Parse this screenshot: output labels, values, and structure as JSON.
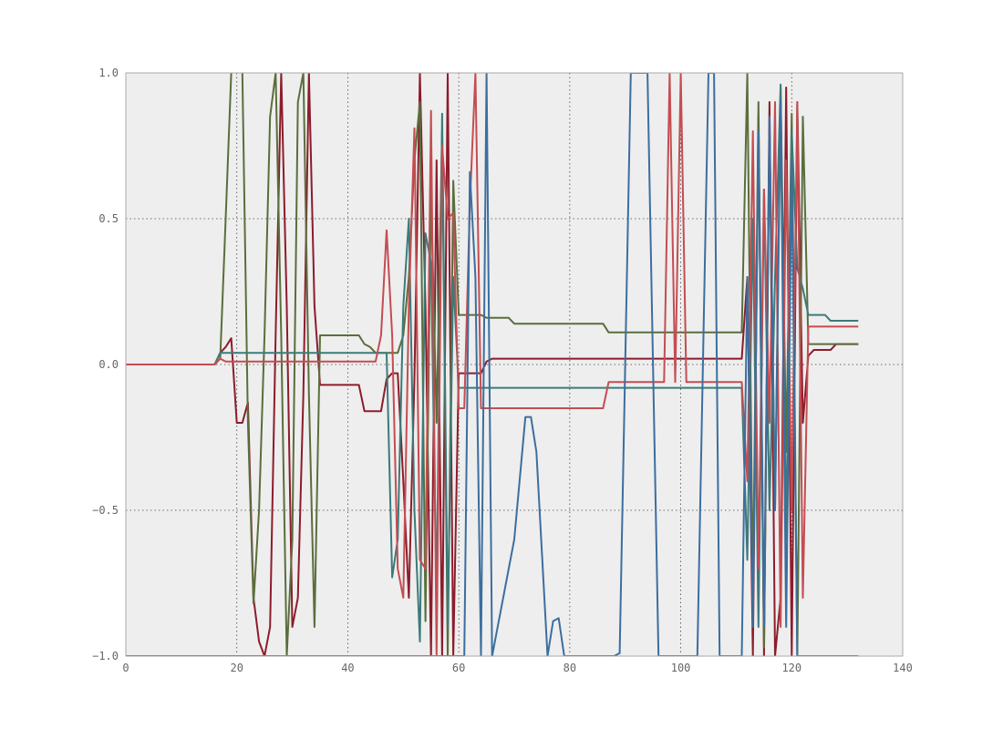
{
  "chart_data": {
    "type": "line",
    "title": "",
    "xlabel": "",
    "ylabel": "",
    "xlim": [
      0,
      140
    ],
    "ylim": [
      -1.0,
      1.0
    ],
    "x_ticks": [
      0,
      20,
      40,
      60,
      80,
      100,
      120,
      140
    ],
    "y_ticks": [
      -1.0,
      -0.5,
      0.0,
      0.5,
      1.0
    ],
    "x_tick_labels": [
      "0",
      "20",
      "40",
      "60",
      "80",
      "100",
      "120",
      "140"
    ],
    "y_tick_labels": [
      "−1.0",
      "−0.5",
      "0.0",
      "0.5",
      "1.0"
    ],
    "grid": true,
    "legend": "none",
    "plot_background": "#eeeeee",
    "series": [
      {
        "color": "#8c1c2c",
        "points": [
          [
            0,
            0
          ],
          [
            16,
            0
          ],
          [
            17,
            0.04
          ],
          [
            18,
            0.06
          ],
          [
            19,
            0.09
          ],
          [
            20,
            -0.2
          ],
          [
            21,
            -0.2
          ],
          [
            22,
            -0.13
          ],
          [
            23,
            -0.8
          ],
          [
            24,
            -0.95
          ],
          [
            25,
            -1.0
          ],
          [
            26,
            -0.9
          ],
          [
            27,
            0.1
          ],
          [
            28,
            1.0
          ],
          [
            29,
            0.2
          ],
          [
            30,
            -0.9
          ],
          [
            31,
            -0.8
          ],
          [
            32,
            -0.1
          ],
          [
            33,
            1.0
          ],
          [
            34,
            0.2
          ],
          [
            35,
            -0.07
          ],
          [
            42,
            -0.07
          ],
          [
            43,
            -0.16
          ],
          [
            46,
            -0.16
          ],
          [
            47,
            -0.05
          ],
          [
            48,
            -0.03
          ],
          [
            49,
            -0.03
          ],
          [
            50,
            -0.4
          ],
          [
            51,
            -0.8
          ],
          [
            52,
            -0.05
          ],
          [
            53,
            1.0
          ],
          [
            54,
            0.2
          ],
          [
            55,
            -1.0
          ],
          [
            56,
            0.7
          ],
          [
            57,
            -1.0
          ],
          [
            58,
            1.0
          ],
          [
            59,
            -1.0
          ],
          [
            60,
            -0.03
          ],
          [
            64,
            -0.03
          ],
          [
            65,
            0.01
          ],
          [
            66,
            0.02
          ],
          [
            110,
            0.02
          ],
          [
            111,
            0.02
          ],
          [
            112,
            0.3
          ],
          [
            113,
            -1.0
          ],
          [
            114,
            0.85
          ],
          [
            115,
            -1.0
          ],
          [
            116,
            0.9
          ],
          [
            117,
            -1.0
          ],
          [
            118,
            -0.8
          ],
          [
            119,
            0.95
          ],
          [
            120,
            -1.0
          ],
          [
            121,
            0.9
          ],
          [
            122,
            -0.2
          ],
          [
            123,
            0.03
          ],
          [
            124,
            0.05
          ],
          [
            127,
            0.05
          ],
          [
            128,
            0.07
          ],
          [
            132,
            0.07
          ]
        ]
      },
      {
        "color": "#5a6e3c",
        "points": [
          [
            0,
            0
          ],
          [
            16,
            0
          ],
          [
            17,
            0.02
          ],
          [
            18,
            0.5
          ],
          [
            19,
            1.0
          ],
          [
            20,
            1.1
          ],
          [
            21,
            1.0
          ],
          [
            22,
            -0.2
          ],
          [
            23,
            -0.82
          ],
          [
            24,
            -0.5
          ],
          [
            25,
            0.1
          ],
          [
            26,
            0.85
          ],
          [
            27,
            1.0
          ],
          [
            28,
            0.1
          ],
          [
            29,
            -1.0
          ],
          [
            30,
            -0.6
          ],
          [
            31,
            0.9
          ],
          [
            32,
            1.0
          ],
          [
            33,
            -0.1
          ],
          [
            34,
            -0.9
          ],
          [
            35,
            0.1
          ],
          [
            42,
            0.1
          ],
          [
            43,
            0.07
          ],
          [
            44,
            0.06
          ],
          [
            45,
            0.04
          ],
          [
            48,
            0.04
          ],
          [
            49,
            0.04
          ],
          [
            50,
            0.1
          ],
          [
            51,
            0.3
          ],
          [
            52,
            0.7
          ],
          [
            53,
            0.9
          ],
          [
            54,
            -0.88
          ],
          [
            55,
            0.6
          ],
          [
            56,
            -0.2
          ],
          [
            57,
            0.8
          ],
          [
            58,
            -1.0
          ],
          [
            59,
            0.63
          ],
          [
            60,
            0.17
          ],
          [
            64,
            0.17
          ],
          [
            65,
            0.16
          ],
          [
            69,
            0.16
          ],
          [
            70,
            0.14
          ],
          [
            86,
            0.14
          ],
          [
            87,
            0.11
          ],
          [
            111,
            0.11
          ],
          [
            112,
            1.0
          ],
          [
            113,
            -0.8
          ],
          [
            114,
            0.9
          ],
          [
            115,
            -0.97
          ],
          [
            116,
            0.8
          ],
          [
            117,
            -0.5
          ],
          [
            118,
            0.95
          ],
          [
            119,
            -0.3
          ],
          [
            120,
            0.86
          ],
          [
            121,
            -1.0
          ],
          [
            122,
            0.85
          ],
          [
            123,
            0.07
          ],
          [
            132,
            0.07
          ]
        ]
      },
      {
        "color": "#3d7a7a",
        "points": [
          [
            0,
            0
          ],
          [
            16,
            0
          ],
          [
            17,
            0.04
          ],
          [
            46,
            0.04
          ],
          [
            47,
            0.04
          ],
          [
            48,
            -0.73
          ],
          [
            49,
            -0.6
          ],
          [
            50,
            0.2
          ],
          [
            51,
            0.5
          ],
          [
            52,
            -0.5
          ],
          [
            53,
            -0.95
          ],
          [
            54,
            0.45
          ],
          [
            55,
            0.35
          ],
          [
            56,
            -0.8
          ],
          [
            57,
            0.86
          ],
          [
            58,
            -0.9
          ],
          [
            59,
            0.3
          ],
          [
            60,
            -0.08
          ],
          [
            111,
            -0.08
          ],
          [
            112,
            -0.67
          ],
          [
            113,
            0.5
          ],
          [
            114,
            -0.9
          ],
          [
            115,
            0.6
          ],
          [
            116,
            -0.5
          ],
          [
            117,
            0.3
          ],
          [
            118,
            0.96
          ],
          [
            119,
            -0.6
          ],
          [
            120,
            0.8
          ],
          [
            121,
            0.33
          ],
          [
            122,
            0.26
          ],
          [
            123,
            0.17
          ],
          [
            126,
            0.17
          ],
          [
            127,
            0.15
          ],
          [
            132,
            0.15
          ]
        ]
      },
      {
        "color": "#c44d52",
        "points": [
          [
            0,
            0
          ],
          [
            16,
            0
          ],
          [
            17,
            0.02
          ],
          [
            18,
            0.01
          ],
          [
            45,
            0.01
          ],
          [
            46,
            0.1
          ],
          [
            47,
            0.46
          ],
          [
            48,
            0.1
          ],
          [
            49,
            -0.7
          ],
          [
            50,
            -0.8
          ],
          [
            51,
            0.2
          ],
          [
            52,
            0.81
          ],
          [
            53,
            -0.67
          ],
          [
            54,
            -0.7
          ],
          [
            55,
            0.87
          ],
          [
            56,
            -1.0
          ],
          [
            57,
            0.75
          ],
          [
            58,
            0.5
          ],
          [
            59,
            0.52
          ],
          [
            60,
            -0.15
          ],
          [
            61,
            -0.15
          ],
          [
            62,
            0.55
          ],
          [
            63,
            1.0
          ],
          [
            64,
            -0.15
          ],
          [
            86,
            -0.15
          ],
          [
            87,
            -0.06
          ],
          [
            97,
            -0.06
          ],
          [
            98,
            1.0
          ],
          [
            99,
            -0.06
          ],
          [
            100,
            1.0
          ],
          [
            101,
            -0.06
          ],
          [
            111,
            -0.06
          ],
          [
            112,
            -0.4
          ],
          [
            113,
            0.8
          ],
          [
            114,
            -0.7
          ],
          [
            115,
            0.6
          ],
          [
            116,
            -0.2
          ],
          [
            117,
            0.9
          ],
          [
            118,
            -0.9
          ],
          [
            119,
            0.7
          ],
          [
            120,
            -0.5
          ],
          [
            121,
            0.9
          ],
          [
            122,
            -0.8
          ],
          [
            123,
            0.13
          ],
          [
            132,
            0.13
          ]
        ]
      },
      {
        "color": "#3c6e9e",
        "points": [
          [
            0,
            -1.0
          ],
          [
            61,
            -1.0
          ],
          [
            62,
            0.66
          ],
          [
            63,
            0.3
          ],
          [
            64,
            -1.0
          ],
          [
            65,
            1.0
          ],
          [
            66,
            -1.0
          ],
          [
            70,
            -0.6
          ],
          [
            72,
            -0.18
          ],
          [
            73,
            -0.18
          ],
          [
            74,
            -0.3
          ],
          [
            76,
            -1.0
          ],
          [
            77,
            -0.88
          ],
          [
            78,
            -0.87
          ],
          [
            79,
            -1.0
          ],
          [
            88,
            -1.0
          ],
          [
            89,
            -0.99
          ],
          [
            91,
            1.0
          ],
          [
            94,
            1.0
          ],
          [
            96,
            -1.0
          ],
          [
            103,
            -1.0
          ],
          [
            105,
            1.0
          ],
          [
            106,
            1.0
          ],
          [
            107,
            -1.0
          ],
          [
            111,
            -1.0
          ],
          [
            112,
            0.3
          ],
          [
            113,
            -0.9
          ],
          [
            114,
            0.8
          ],
          [
            115,
            -0.9
          ],
          [
            116,
            0.85
          ],
          [
            117,
            -0.5
          ],
          [
            118,
            0.9
          ],
          [
            119,
            -0.9
          ],
          [
            120,
            0.7
          ],
          [
            121,
            -1.0
          ],
          [
            122,
            -1.0
          ],
          [
            132,
            -1.0
          ]
        ]
      }
    ]
  }
}
